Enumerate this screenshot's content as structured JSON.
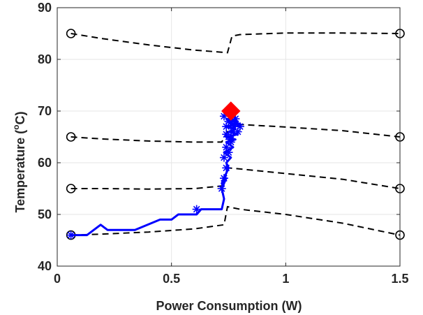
{
  "chart_data": {
    "type": "line",
    "title": "",
    "xlabel": "Power Consumption (W)",
    "ylabel": {
      "prefix": "Temperature (",
      "sup": "o",
      "suffix": "C)"
    },
    "xlim": [
      0,
      1.5
    ],
    "ylim": [
      40,
      90
    ],
    "xticks": [
      0,
      0.5,
      1,
      1.5
    ],
    "xtick_labels": [
      "0",
      "0.5",
      "1",
      "1.5"
    ],
    "yticks": [
      40,
      50,
      60,
      70,
      80,
      90
    ],
    "ytick_labels": [
      "40",
      "50",
      "60",
      "70",
      "80",
      "90"
    ],
    "grid": true,
    "legend": "none",
    "colors": {
      "dashed_curves": "#000000",
      "trajectory": "#0000ff",
      "final_marker": "#ff0000"
    },
    "dashed_curves": [
      {
        "x": [
          0.06,
          0.2,
          0.4,
          0.6,
          0.745,
          0.765,
          0.8,
          1.0,
          1.25,
          1.5
        ],
        "y": [
          85,
          84,
          82.8,
          81.8,
          81.3,
          84.5,
          84.8,
          85.1,
          85.1,
          85
        ]
      },
      {
        "x": [
          0.06,
          0.2,
          0.4,
          0.6,
          0.72,
          0.76,
          0.8,
          1.0,
          1.25,
          1.5
        ],
        "y": [
          65,
          64.6,
          64.2,
          64,
          64,
          67.5,
          67.4,
          66.9,
          66.2,
          65
        ]
      },
      {
        "x": [
          0.06,
          0.2,
          0.4,
          0.6,
          0.72,
          0.75,
          0.8,
          1.0,
          1.25,
          1.5
        ],
        "y": [
          55,
          55,
          54.9,
          55,
          55.5,
          59,
          58.8,
          57.9,
          56.8,
          55
        ]
      },
      {
        "x": [
          0.06,
          0.2,
          0.4,
          0.6,
          0.73,
          0.745,
          0.8,
          1.0,
          1.25,
          1.5
        ],
        "y": [
          46,
          46.2,
          46.6,
          47.2,
          48,
          51.5,
          51,
          50,
          48.3,
          46
        ]
      }
    ],
    "circle_markers": [
      {
        "x": 0.06,
        "y": 85
      },
      {
        "x": 1.5,
        "y": 85
      },
      {
        "x": 0.06,
        "y": 65
      },
      {
        "x": 1.5,
        "y": 65
      },
      {
        "x": 0.06,
        "y": 55
      },
      {
        "x": 1.5,
        "y": 55
      },
      {
        "x": 0.06,
        "y": 46
      },
      {
        "x": 1.5,
        "y": 46
      }
    ],
    "trajectory": {
      "x": [
        0.06,
        0.13,
        0.19,
        0.22,
        0.34,
        0.45,
        0.5,
        0.53,
        0.61,
        0.63,
        0.68,
        0.72,
        0.73,
        0.72,
        0.74,
        0.72,
        0.75,
        0.74,
        0.76,
        0.73,
        0.77,
        0.74,
        0.78,
        0.74,
        0.79,
        0.75,
        0.78,
        0.74,
        0.8,
        0.75,
        0.79,
        0.74,
        0.78,
        0.75,
        0.8,
        0.76
      ],
      "y": [
        46,
        46,
        48,
        47,
        47,
        49,
        49,
        50,
        50,
        51,
        51,
        51,
        53,
        55,
        57,
        56,
        59,
        60,
        61,
        62,
        63,
        64,
        64.5,
        65,
        65.5,
        66,
        66.5,
        67,
        67.5,
        67,
        68,
        68.5,
        66.5,
        69,
        67,
        70
      ]
    },
    "trajectory_star_markers": [
      {
        "x": 0.06,
        "y": 46
      },
      {
        "x": 0.61,
        "y": 51
      },
      {
        "x": 0.72,
        "y": 55
      },
      {
        "x": 0.73,
        "y": 57
      },
      {
        "x": 0.74,
        "y": 59
      },
      {
        "x": 0.73,
        "y": 61
      },
      {
        "x": 0.75,
        "y": 62
      },
      {
        "x": 0.74,
        "y": 63
      },
      {
        "x": 0.76,
        "y": 64
      },
      {
        "x": 0.75,
        "y": 65
      },
      {
        "x": 0.77,
        "y": 66
      },
      {
        "x": 0.74,
        "y": 67
      },
      {
        "x": 0.78,
        "y": 67.5
      },
      {
        "x": 0.75,
        "y": 68
      },
      {
        "x": 0.79,
        "y": 66
      },
      {
        "x": 0.73,
        "y": 69
      },
      {
        "x": 0.8,
        "y": 67
      },
      {
        "x": 0.76,
        "y": 64.5
      },
      {
        "x": 0.78,
        "y": 68.5
      },
      {
        "x": 0.74,
        "y": 65.5
      }
    ],
    "final_marker": {
      "x": 0.76,
      "y": 70,
      "shape": "diamond"
    }
  }
}
